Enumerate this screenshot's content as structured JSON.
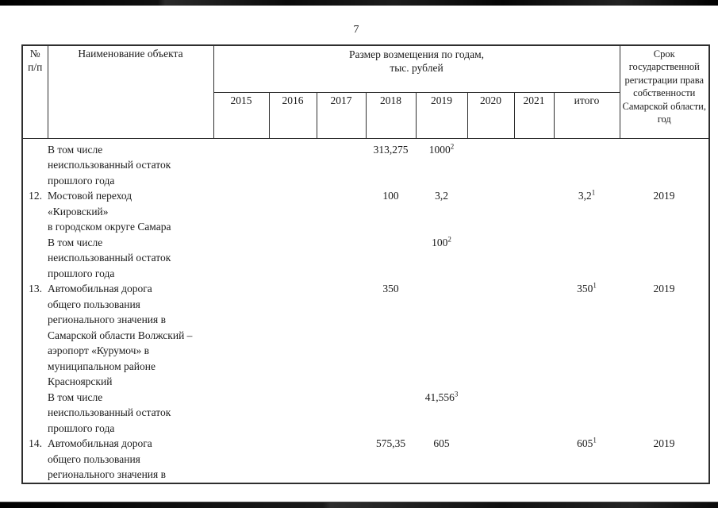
{
  "page": {
    "number": "7"
  },
  "table": {
    "header": {
      "col_num": "№\nп/п",
      "col_name": "Наименование объекта",
      "col_span": "Размер возмещения по годам,\nтыс. рублей",
      "years": [
        "2015",
        "2016",
        "2017",
        "2018",
        "2019",
        "2020",
        "2021"
      ],
      "total_label": "итого",
      "col_term": "Срок государственной регистрации права собственности Самарской области, год"
    },
    "rows": [
      {
        "num": "",
        "name_lines": [
          "В том числе",
          "неиспользованный остаток",
          "прошлого года"
        ],
        "y2018": {
          "v": "313,275"
        },
        "y2019": {
          "v": "1000",
          "sup": "2"
        }
      },
      {
        "num": "12.",
        "name_lines": [
          "Мостовой переход",
          "«Кировский»",
          "в городском округе Самара"
        ],
        "y2018": {
          "v": "100"
        },
        "y2019": {
          "v": "3,2"
        },
        "total": {
          "v": "3,2",
          "sup": "1"
        },
        "term": "2019"
      },
      {
        "num": "",
        "name_lines": [
          "В том числе",
          "неиспользованный остаток",
          "прошлого года"
        ],
        "y2019": {
          "v": "100",
          "sup": "2"
        }
      },
      {
        "num": "13.",
        "name_lines": [
          "Автомобильная дорога",
          "общего пользования",
          "регионального значения в",
          "Самарской области Волжский –",
          "аэропорт «Курумоч» в",
          "муниципальном районе",
          "Красноярский"
        ],
        "y2018": {
          "v": "350"
        },
        "total": {
          "v": "350",
          "sup": "1"
        },
        "term": "2019"
      },
      {
        "num": "",
        "name_lines": [
          "В том числе",
          "неиспользованный остаток",
          "прошлого года"
        ],
        "y2019": {
          "v": "41,556",
          "sup": "3"
        }
      },
      {
        "num": "14.",
        "name_lines": [
          "Автомобильная дорога",
          "общего пользования",
          "регионального значения в"
        ],
        "y2018": {
          "v": "575,35"
        },
        "y2019": {
          "v": "605"
        },
        "total": {
          "v": "605",
          "sup": "1"
        },
        "term": "2019"
      }
    ]
  },
  "colors": {
    "ink": "#1a1a1a",
    "border": "#2e2e2e",
    "scan_bar": "#0a0a0a",
    "paper": "#ffffff"
  }
}
